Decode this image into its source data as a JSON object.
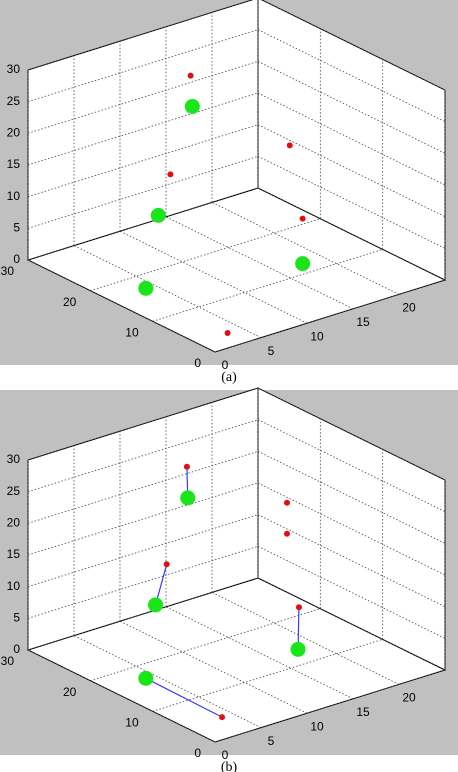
{
  "chart_data": [
    {
      "type": "scatter3d",
      "caption": "(a)",
      "xlim": [
        0,
        25
      ],
      "ylim": [
        0,
        30
      ],
      "zlim": [
        0,
        30
      ],
      "xticks": [
        0,
        5,
        10,
        15,
        20
      ],
      "yticks": [
        0,
        10,
        20,
        30
      ],
      "zticks": [
        0,
        5,
        10,
        15,
        20,
        25,
        30
      ],
      "grid": true,
      "series": [
        {
          "type": "scatter",
          "color": "#19e619",
          "marker_size": 15,
          "x": [
            7.7,
            4.0,
            4.0,
            16.3
          ],
          "y": [
            15,
            15,
            17,
            10
          ],
          "z": [
            28,
            12.5,
            0,
            1.7
          ]
        },
        {
          "type": "scatter",
          "color": "#e01010",
          "marker_size": 6,
          "x": [
            10.9,
            8.7,
            14.9,
            16.3,
            3.4
          ],
          "y": [
            20,
            20,
            10,
            10,
            3
          ],
          "z": [
            29,
            14.4,
            21,
            8.8,
            0
          ]
        }
      ]
    },
    {
      "type": "scatter3d",
      "caption": "(b)",
      "xlim": [
        0,
        25
      ],
      "ylim": [
        0,
        30
      ],
      "zlim": [
        0,
        30
      ],
      "xticks": [
        0,
        5,
        10,
        15,
        20
      ],
      "yticks": [
        0,
        10,
        20,
        30
      ],
      "zticks": [
        0,
        5,
        10,
        15,
        20,
        25,
        30
      ],
      "grid": true,
      "series": [
        {
          "type": "scatter",
          "color": "#19e619",
          "marker_size": 15,
          "x": [
            7.2,
            3.7,
            4.0,
            15.8
          ],
          "y": [
            15,
            15,
            17,
            10
          ],
          "z": [
            28,
            12.7,
            0,
            2.6
          ]
        },
        {
          "type": "scatter",
          "color": "#e01010",
          "marker_size": 6,
          "x": [
            10.5,
            8.3,
            14.6,
            14.6,
            15.9,
            2.8
          ],
          "y": [
            20,
            20,
            10,
            10,
            10,
            3
          ],
          "z": [
            29,
            14.6,
            26.3,
            21.4,
            9.2,
            1.2
          ]
        },
        {
          "type": "line",
          "color": "#3a3aff",
          "x": [
            7.2,
            10.5,
            null,
            3.7,
            8.3,
            null,
            15.8,
            15.9,
            null,
            4.0,
            2.8
          ],
          "y": [
            15,
            20,
            null,
            15,
            20,
            null,
            10,
            10,
            null,
            17,
            3
          ],
          "z": [
            28,
            29,
            null,
            12.7,
            14.6,
            null,
            2.6,
            9.2,
            null,
            0,
            1.2
          ]
        }
      ]
    }
  ]
}
